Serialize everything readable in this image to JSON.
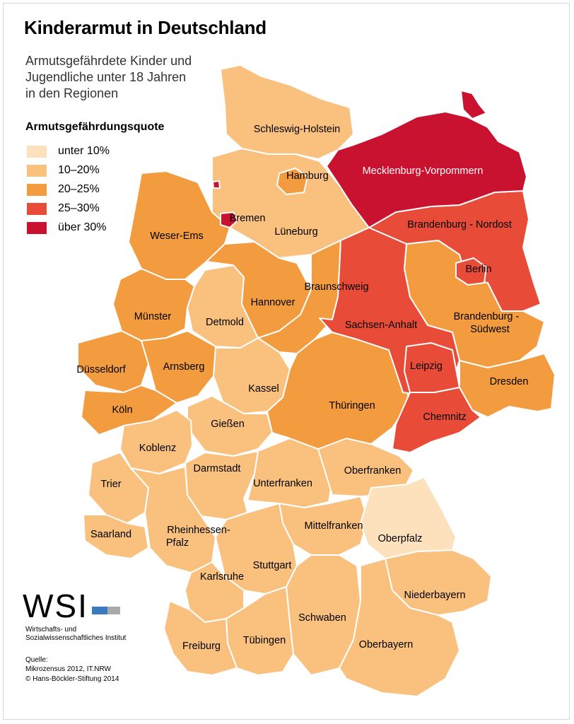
{
  "title": "Kinderarmut in Deutschland",
  "subtitle_lines": [
    "Armutsgefährdete Kinder und",
    "Jugendliche unter 18 Jahren",
    "in den Regionen"
  ],
  "legend": {
    "title": "Armutsgefährdungsquote",
    "items": [
      {
        "label": "unter 10%",
        "color": "#fde1bd"
      },
      {
        "label": "10–20%",
        "color": "#f9c07e"
      },
      {
        "label": "20–25%",
        "color": "#f29b3f"
      },
      {
        "label": "25–30%",
        "color": "#e84b37"
      },
      {
        "label": "über 30%",
        "color": "#c8122f"
      }
    ]
  },
  "regions": {
    "schleswig_holstein": {
      "name": "Schleswig-Holstein",
      "class": "10–20%"
    },
    "mecklenburg_vorpommern": {
      "name": "Mecklenburg-Vorpommern",
      "class": "über 30%"
    },
    "hamburg": {
      "name": "Hamburg",
      "class": "20–25%"
    },
    "bremen": {
      "name": "Bremen",
      "class": "über 30%"
    },
    "weser_ems": {
      "name": "Weser-Ems",
      "class": "20–25%"
    },
    "lueneburg": {
      "name": "Lüneburg",
      "class": "10–20%"
    },
    "brandenburg_nordost": {
      "name": "Brandenburg - Nordost",
      "class": "25–30%"
    },
    "berlin": {
      "name": "Berlin",
      "class": "25–30%"
    },
    "braunschweig": {
      "name": "Braunschweig",
      "class": "20–25%"
    },
    "hannover": {
      "name": "Hannover",
      "class": "20–25%"
    },
    "muenster": {
      "name": "Münster",
      "class": "20–25%"
    },
    "detmold": {
      "name": "Detmold",
      "class": "10–20%"
    },
    "sachsen_anhalt": {
      "name": "Sachsen-Anhalt",
      "class": "25–30%"
    },
    "brandenburg_suedwest": {
      "name_line1": "Brandenburg -",
      "name_line2": "Südwest",
      "class": "20–25%"
    },
    "duesseldorf": {
      "name": "Düsseldorf",
      "class": "20–25%"
    },
    "arnsberg": {
      "name": "Arnsberg",
      "class": "20–25%"
    },
    "leipzig": {
      "name": "Leipzig",
      "class": "25–30%"
    },
    "dresden": {
      "name": "Dresden",
      "class": "20–25%"
    },
    "kassel": {
      "name": "Kassel",
      "class": "10–20%"
    },
    "koeln": {
      "name": "Köln",
      "class": "20–25%"
    },
    "thueringen": {
      "name": "Thüringen",
      "class": "20–25%"
    },
    "giessen": {
      "name": "Gießen",
      "class": "10–20%"
    },
    "chemnitz": {
      "name": "Chemnitz",
      "class": "25–30%"
    },
    "koblenz": {
      "name": "Koblenz",
      "class": "10–20%"
    },
    "darmstadt": {
      "name": "Darmstadt",
      "class": "10–20%"
    },
    "oberfranken": {
      "name": "Oberfranken",
      "class": "10–20%"
    },
    "trier": {
      "name": "Trier",
      "class": "10–20%"
    },
    "unterfranken": {
      "name": "Unterfranken",
      "class": "10–20%"
    },
    "mittelfranken": {
      "name": "Mittelfranken",
      "class": "10–20%"
    },
    "rheinhessen_pfalz": {
      "name_line1": "Rheinhessen-",
      "name_line2": "Pfalz",
      "class": "10–20%"
    },
    "saarland": {
      "name": "Saarland",
      "class": "10–20%"
    },
    "oberpfalz": {
      "name": "Oberpfalz",
      "class": "unter 10%"
    },
    "stuttgart": {
      "name": "Stuttgart",
      "class": "10–20%"
    },
    "karlsruhe": {
      "name": "Karlsruhe",
      "class": "10–20%"
    },
    "niederbayern": {
      "name": "Niederbayern",
      "class": "10–20%"
    },
    "schwaben": {
      "name": "Schwaben",
      "class": "10–20%"
    },
    "tuebingen": {
      "name": "Tübingen",
      "class": "10–20%"
    },
    "oberbayern": {
      "name": "Oberbayern",
      "class": "10–20%"
    },
    "freiburg": {
      "name": "Freiburg",
      "class": "10–20%"
    }
  },
  "logo": {
    "text": "WSI",
    "name_line1": "Wirtschafts- und",
    "name_line2": "Sozialwissenschaftliches Institut",
    "colors": [
      "#3a7abf",
      "#a9a9a9"
    ]
  },
  "source": {
    "label": "Quelle:",
    "line1": "Mikrozensus 2012, IT.NRW",
    "line2": "© Hans-Böckler-Stiftung 2014"
  }
}
